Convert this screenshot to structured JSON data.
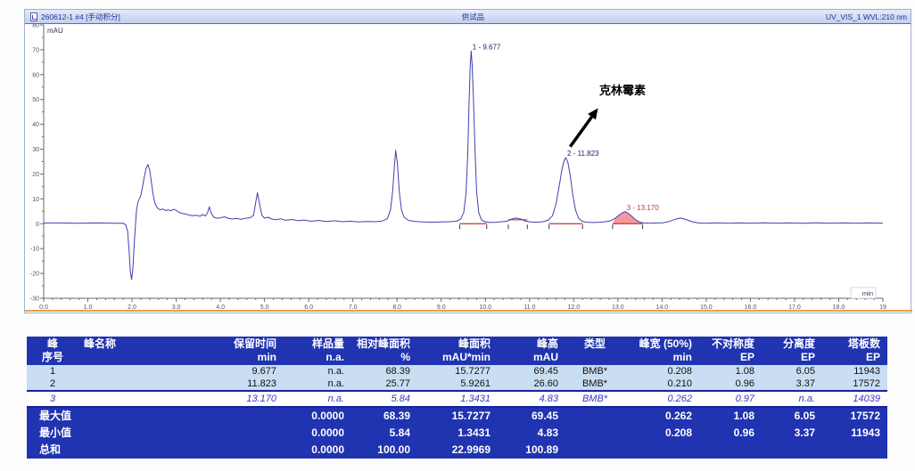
{
  "panel": {
    "header": {
      "left": "260612-1 #4 [手动积分]",
      "center": "供试品",
      "right": "UV_VIS_1 WVL:210 nm"
    }
  },
  "chart_data": {
    "type": "line",
    "title": "供试品",
    "xlabel": "min",
    "ylabel": "mAU",
    "xlim": [
      0,
      19
    ],
    "ylim": [
      -30,
      80
    ],
    "x_tick_step": 1.0,
    "y_tick_step": 10,
    "grid": false,
    "series": [
      {
        "name": "UV_VIS_1 WVL:210 nm",
        "color": "#3f3fb0",
        "points": [
          [
            0.0,
            0.3
          ],
          [
            0.4,
            0.3
          ],
          [
            0.8,
            0.2
          ],
          [
            1.2,
            0.3
          ],
          [
            1.6,
            0.2
          ],
          [
            1.8,
            0.2
          ],
          [
            1.86,
            -0.5
          ],
          [
            1.9,
            -3
          ],
          [
            1.93,
            -10
          ],
          [
            1.96,
            -19
          ],
          [
            1.99,
            -22.5
          ],
          [
            2.02,
            -18
          ],
          [
            2.05,
            -8
          ],
          [
            2.08,
            0
          ],
          [
            2.1,
            5
          ],
          [
            2.13,
            8.5
          ],
          [
            2.16,
            9.8
          ],
          [
            2.2,
            11.5
          ],
          [
            2.24,
            15
          ],
          [
            2.28,
            19
          ],
          [
            2.32,
            22.5
          ],
          [
            2.36,
            23.8
          ],
          [
            2.4,
            21.5
          ],
          [
            2.44,
            16.5
          ],
          [
            2.48,
            11.5
          ],
          [
            2.52,
            8.2
          ],
          [
            2.57,
            6.4
          ],
          [
            2.63,
            5.6
          ],
          [
            2.7,
            5.9
          ],
          [
            2.76,
            5.3
          ],
          [
            2.82,
            5.6
          ],
          [
            2.88,
            5.2
          ],
          [
            2.94,
            5.8
          ],
          [
            3.0,
            5.4
          ],
          [
            3.06,
            4.6
          ],
          [
            3.14,
            4.1
          ],
          [
            3.22,
            3.9
          ],
          [
            3.3,
            3.4
          ],
          [
            3.38,
            3.2
          ],
          [
            3.46,
            3.4
          ],
          [
            3.54,
            3.0
          ],
          [
            3.6,
            3.7
          ],
          [
            3.66,
            3.1
          ],
          [
            3.71,
            4.4
          ],
          [
            3.75,
            6.8
          ],
          [
            3.79,
            4.4
          ],
          [
            3.85,
            2.6
          ],
          [
            3.93,
            2.2
          ],
          [
            4.01,
            2.4
          ],
          [
            4.09,
            2.8
          ],
          [
            4.17,
            2.2
          ],
          [
            4.27,
            1.9
          ],
          [
            4.37,
            2.1
          ],
          [
            4.47,
            1.8
          ],
          [
            4.57,
            2.2
          ],
          [
            4.67,
            2.4
          ],
          [
            4.75,
            3.4
          ],
          [
            4.8,
            8.5
          ],
          [
            4.84,
            12.5
          ],
          [
            4.88,
            8.5
          ],
          [
            4.94,
            3.4
          ],
          [
            5.0,
            2.2
          ],
          [
            5.08,
            2.6
          ],
          [
            5.16,
            1.9
          ],
          [
            5.26,
            1.6
          ],
          [
            5.36,
            2.0
          ],
          [
            5.48,
            1.4
          ],
          [
            5.62,
            1.7
          ],
          [
            5.76,
            1.2
          ],
          [
            5.9,
            1.5
          ],
          [
            6.05,
            1.0
          ],
          [
            6.22,
            1.3
          ],
          [
            6.4,
            0.9
          ],
          [
            6.58,
            1.2
          ],
          [
            6.76,
            0.8
          ],
          [
            6.94,
            1.0
          ],
          [
            7.12,
            0.7
          ],
          [
            7.32,
            0.9
          ],
          [
            7.52,
            0.8
          ],
          [
            7.66,
            1.1
          ],
          [
            7.78,
            2.0
          ],
          [
            7.85,
            5.5
          ],
          [
            7.9,
            13
          ],
          [
            7.94,
            23
          ],
          [
            7.97,
            29.5
          ],
          [
            8.01,
            24
          ],
          [
            8.05,
            13
          ],
          [
            8.1,
            5.5
          ],
          [
            8.16,
            2.6
          ],
          [
            8.26,
            1.3
          ],
          [
            8.42,
            0.9
          ],
          [
            8.6,
            0.7
          ],
          [
            8.8,
            0.6
          ],
          [
            9.0,
            0.7
          ],
          [
            9.2,
            0.8
          ],
          [
            9.34,
            1.0
          ],
          [
            9.44,
            1.8
          ],
          [
            9.51,
            4.5
          ],
          [
            9.56,
            12
          ],
          [
            9.6,
            28
          ],
          [
            9.63,
            48
          ],
          [
            9.655,
            63
          ],
          [
            9.677,
            69.5
          ],
          [
            9.7,
            64
          ],
          [
            9.73,
            50
          ],
          [
            9.765,
            30
          ],
          [
            9.8,
            13
          ],
          [
            9.85,
            4.5
          ],
          [
            9.91,
            1.6
          ],
          [
            9.99,
            0.8
          ],
          [
            10.1,
            0.5
          ],
          [
            10.24,
            0.6
          ],
          [
            10.38,
            0.8
          ],
          [
            10.5,
            1.1
          ],
          [
            10.6,
            1.9
          ],
          [
            10.7,
            2.3
          ],
          [
            10.8,
            1.9
          ],
          [
            10.9,
            1.1
          ],
          [
            11.02,
            0.7
          ],
          [
            11.16,
            0.6
          ],
          [
            11.3,
            0.8
          ],
          [
            11.42,
            1.4
          ],
          [
            11.52,
            3.2
          ],
          [
            11.6,
            8
          ],
          [
            11.67,
            15
          ],
          [
            11.73,
            21.5
          ],
          [
            11.78,
            25.3
          ],
          [
            11.823,
            26.6
          ],
          [
            11.87,
            24.5
          ],
          [
            11.92,
            19.5
          ],
          [
            11.98,
            11.5
          ],
          [
            12.04,
            5.5
          ],
          [
            12.11,
            2.2
          ],
          [
            12.19,
            1.0
          ],
          [
            12.3,
            0.6
          ],
          [
            12.44,
            0.5
          ],
          [
            12.58,
            0.6
          ],
          [
            12.72,
            0.8
          ],
          [
            12.84,
            1.2
          ],
          [
            12.94,
            2.2
          ],
          [
            13.03,
            3.5
          ],
          [
            13.1,
            4.4
          ],
          [
            13.17,
            4.85
          ],
          [
            13.24,
            4.1
          ],
          [
            13.32,
            2.9
          ],
          [
            13.41,
            1.5
          ],
          [
            13.5,
            0.6
          ],
          [
            13.58,
            0.3
          ],
          [
            13.72,
            0.2
          ],
          [
            13.88,
            0.3
          ],
          [
            14.02,
            0.4
          ],
          [
            14.16,
            0.9
          ],
          [
            14.3,
            1.8
          ],
          [
            14.42,
            2.3
          ],
          [
            14.54,
            1.7
          ],
          [
            14.68,
            0.8
          ],
          [
            14.82,
            0.3
          ],
          [
            15.0,
            0.2
          ],
          [
            15.25,
            0.4
          ],
          [
            15.5,
            0.2
          ],
          [
            15.75,
            0.3
          ],
          [
            16.0,
            0.2
          ],
          [
            16.3,
            0.4
          ],
          [
            16.6,
            0.2
          ],
          [
            16.9,
            0.3
          ],
          [
            17.2,
            0.2
          ],
          [
            17.5,
            0.4
          ],
          [
            17.8,
            0.2
          ],
          [
            18.1,
            0.3
          ],
          [
            18.4,
            0.2
          ],
          [
            18.7,
            0.3
          ],
          [
            19.0,
            0.2
          ]
        ]
      }
    ],
    "peaks": [
      {
        "label": "1 - 9.677",
        "t": 9.677,
        "v": 69.45,
        "color": "#1c1c6e"
      },
      {
        "label": "2 - 11.823",
        "t": 11.823,
        "v": 26.6,
        "color": "#1c1c6e"
      },
      {
        "label": "3 - 13.170",
        "t": 13.17,
        "v": 4.83,
        "color": "#cc3333"
      }
    ],
    "baseline_segments": [
      {
        "t0": 9.42,
        "t1": 10.03,
        "v": 0
      },
      {
        "t0": 10.52,
        "t1": 10.95,
        "v": 1.6
      },
      {
        "t0": 11.44,
        "t1": 12.2,
        "v": 0
      },
      {
        "t0": 12.88,
        "t1": 13.56,
        "v": 0
      }
    ],
    "boundary_ticks": [
      9.42,
      10.03,
      10.52,
      10.95,
      11.44,
      12.2,
      12.88,
      13.56
    ],
    "filled_peak": {
      "t0": 12.88,
      "t1": 13.56,
      "fill": "#f4999b",
      "stroke": "#cc3333"
    },
    "annotation": {
      "text": "克林霉素",
      "text_pos": [
        12.58,
        52
      ],
      "arrow_from": [
        11.92,
        31
      ],
      "arrow_to": [
        12.55,
        46.5
      ],
      "color": "#000000"
    },
    "colors": {
      "axis": "#6a6a6a",
      "tick_label": "#50506e",
      "baseline_red": "#cc3333",
      "bottom_rule": "#e8a23c"
    }
  },
  "table": {
    "columns": [
      {
        "line1": "峰",
        "line2": "序号"
      },
      {
        "line1": "峰名称",
        "line2": ""
      },
      {
        "line1": "保留时间",
        "line2": "min"
      },
      {
        "line1": "样品量",
        "line2": "n.a."
      },
      {
        "line1": "相对峰面积",
        "line2": "%"
      },
      {
        "line1": "峰面积",
        "line2": "mAU*min"
      },
      {
        "line1": "峰高",
        "line2": "mAU"
      },
      {
        "line1": "类型",
        "line2": ""
      },
      {
        "line1": "峰宽 (50%)",
        "line2": "min"
      },
      {
        "line1": "不对称度",
        "line2": "EP"
      },
      {
        "line1": "分离度",
        "line2": "EP"
      },
      {
        "line1": "塔板数",
        "line2": "EP"
      }
    ],
    "rows": [
      {
        "style": "light",
        "cells": [
          "1",
          "",
          "9.677",
          "n.a.",
          "68.39",
          "15.7277",
          "69.45",
          "BMB*",
          "0.208",
          "1.08",
          "6.05",
          "11943"
        ]
      },
      {
        "style": "light",
        "cells": [
          "2",
          "",
          "11.823",
          "n.a.",
          "25.77",
          "5.9261",
          "26.60",
          "BMB*",
          "0.210",
          "0.96",
          "3.37",
          "17572"
        ]
      },
      {
        "style": "selected",
        "cells": [
          "3",
          "",
          "13.170",
          "n.a.",
          "5.84",
          "1.3431",
          "4.83",
          "BMB*",
          "0.262",
          "0.97",
          "n.a.",
          "14039"
        ]
      }
    ],
    "summary_rows": [
      {
        "cells": [
          "最大值",
          "",
          "",
          "0.0000",
          "68.39",
          "15.7277",
          "69.45",
          "",
          "0.262",
          "1.08",
          "6.05",
          "17572"
        ]
      },
      {
        "cells": [
          "最小值",
          "",
          "",
          "0.0000",
          "5.84",
          "1.3431",
          "4.83",
          "",
          "0.208",
          "0.96",
          "3.37",
          "11943"
        ]
      },
      {
        "cells": [
          "总和",
          "",
          "",
          "0.0000",
          "100.00",
          "22.9969",
          "100.89",
          "",
          "",
          "",
          "",
          ""
        ]
      }
    ]
  }
}
